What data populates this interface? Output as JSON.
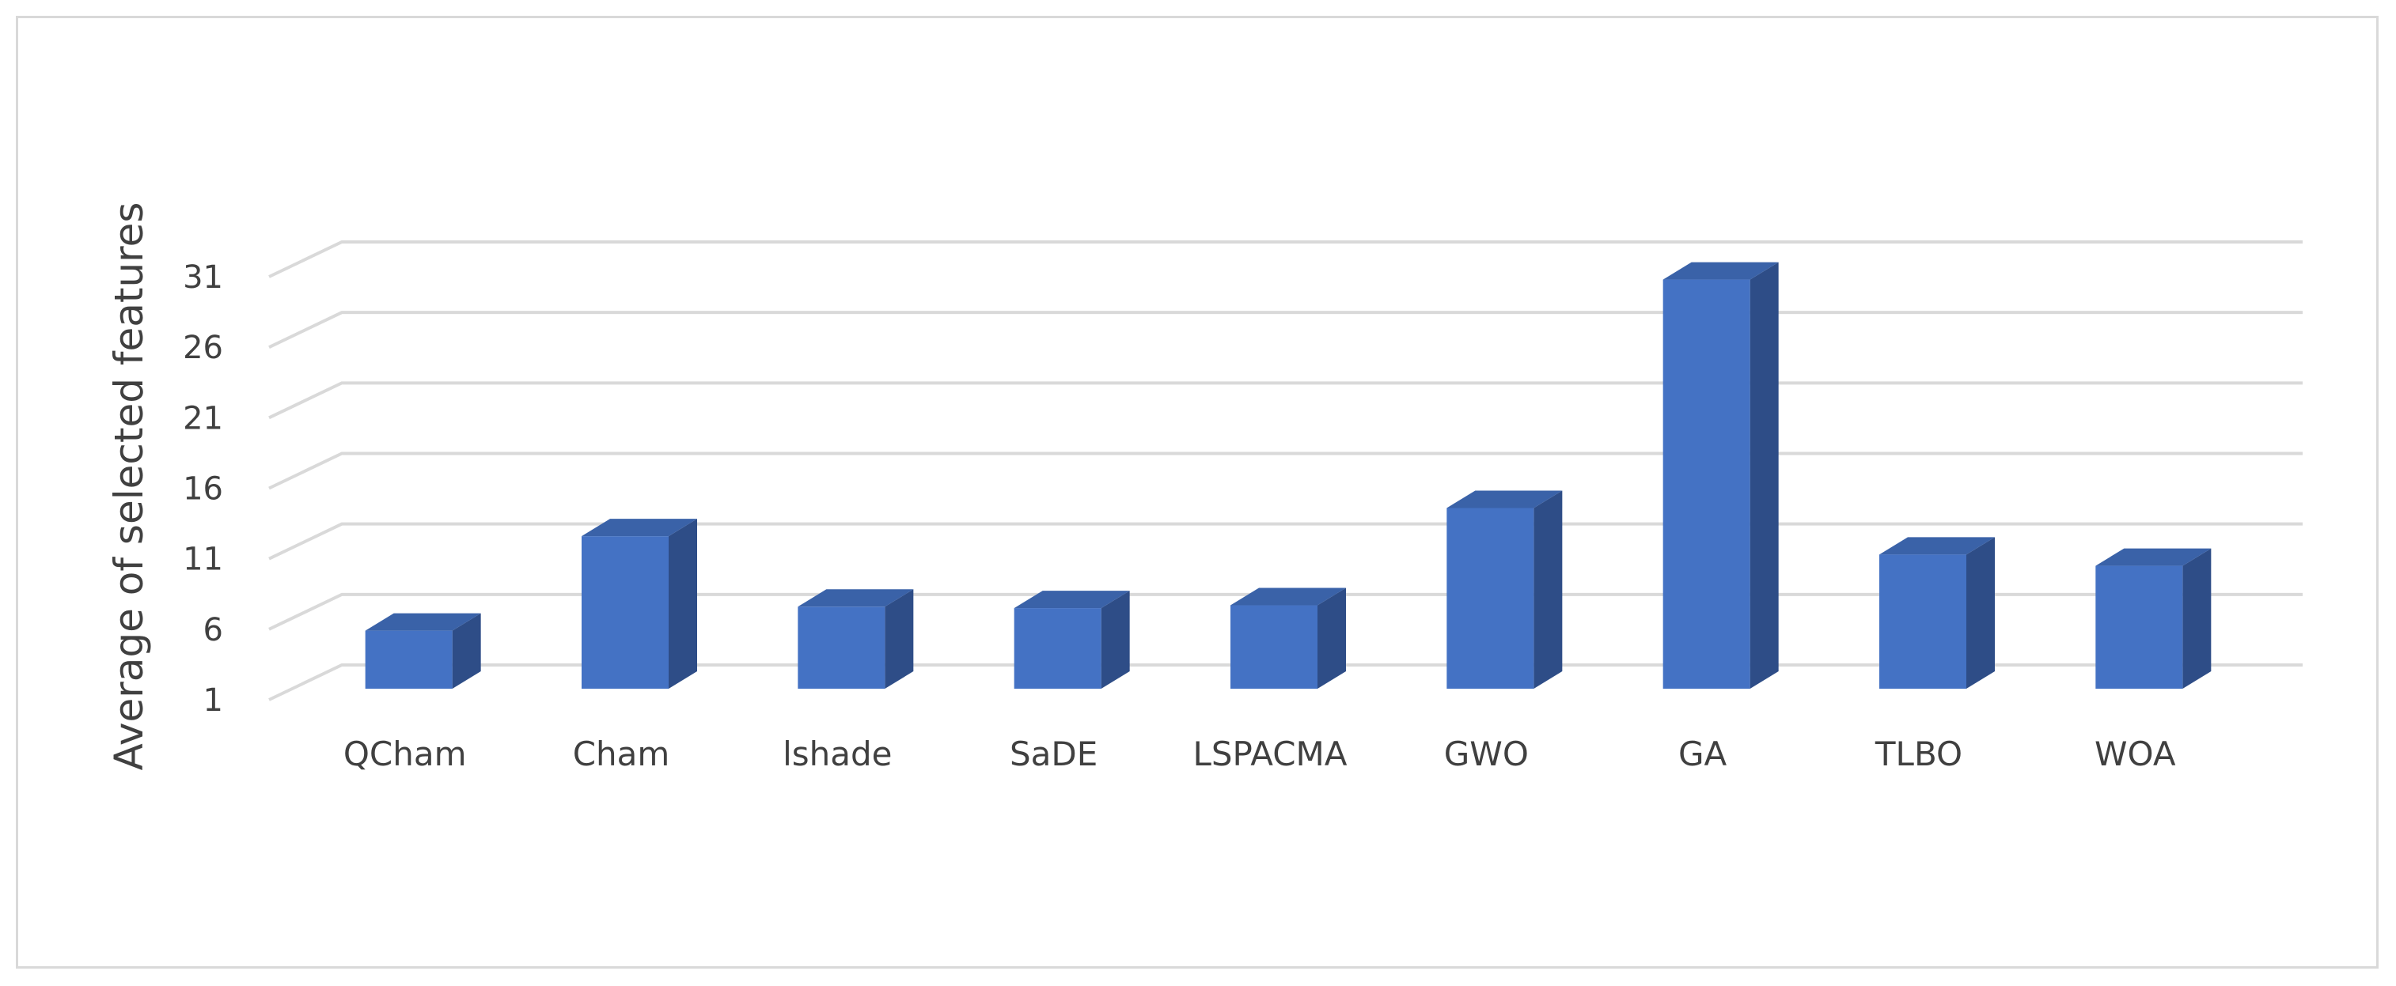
{
  "chart_data": {
    "type": "bar",
    "style": "3d-column",
    "categories": [
      "QCham",
      "Cham",
      "lshade",
      "SaDE",
      "LSPACMA",
      "GWO",
      "GA",
      "TLBO",
      "WOA"
    ],
    "values": [
      5.9,
      12.6,
      7.6,
      7.5,
      7.7,
      14.6,
      30.8,
      11.3,
      10.5
    ],
    "title": "",
    "xlabel": "",
    "ylabel": "Average of selected features",
    "yticks": [
      1,
      6,
      11,
      16,
      21,
      26,
      31
    ],
    "ylim": [
      1,
      31
    ],
    "grid": true,
    "legend": "none",
    "colors": {
      "bar_front": "#4472c4",
      "bar_side": "#2e4d87",
      "bar_top": "#3a62a8",
      "grid": "#d9d9d9",
      "text": "#404040"
    }
  }
}
